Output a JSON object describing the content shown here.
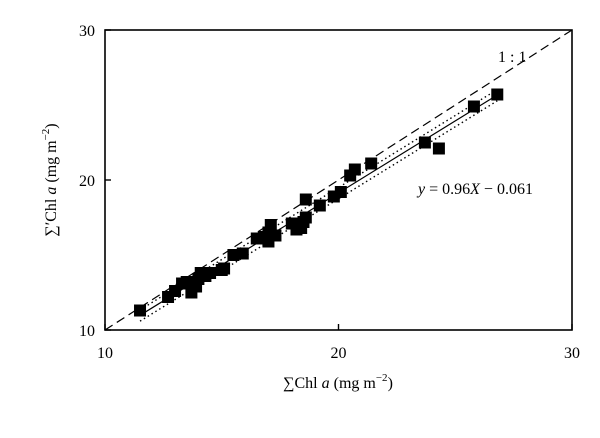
{
  "chart_data": {
    "type": "scatter",
    "title": "",
    "xlabel": "∑Chl a (mg m⁻²)",
    "xlabel_parts": [
      "∑Chl ",
      "a",
      " (mg m",
      "−2",
      ")"
    ],
    "ylabel": "∑′Chl a (mg m⁻²)",
    "ylabel_parts": [
      "∑′Chl ",
      "a",
      " (mg m",
      "−2",
      ")"
    ],
    "xlim": [
      10,
      30
    ],
    "ylim": [
      10,
      30
    ],
    "xticks": [
      "10",
      "20",
      "30"
    ],
    "yticks": [
      "10",
      "20",
      "30"
    ],
    "grid": false,
    "x": [
      11.5,
      12.7,
      13.0,
      13.3,
      13.5,
      13.7,
      13.8,
      13.9,
      14.0,
      14.1,
      14.3,
      14.5,
      15.0,
      15.1,
      15.5,
      15.9,
      16.5,
      16.8,
      17.0,
      17.0,
      17.1,
      17.3,
      18.0,
      18.2,
      18.4,
      18.5,
      18.6,
      18.6,
      19.2,
      19.8,
      20.1,
      20.5,
      20.7,
      21.4,
      23.7,
      24.3,
      25.8,
      26.8
    ],
    "y": [
      11.3,
      12.2,
      12.6,
      13.1,
      13.2,
      12.5,
      13.1,
      12.9,
      13.4,
      13.8,
      13.6,
      13.8,
      14.0,
      14.1,
      15.0,
      15.1,
      16.1,
      16.2,
      15.9,
      16.5,
      17.0,
      16.3,
      17.1,
      16.7,
      16.8,
      17.2,
      17.5,
      18.7,
      18.3,
      18.9,
      19.2,
      20.3,
      20.7,
      21.1,
      22.5,
      22.1,
      24.9,
      25.7
    ],
    "lines": [
      {
        "name": "1:1",
        "style": "dashed",
        "slope": 1.0,
        "intercept": 0
      },
      {
        "name": "fit",
        "style": "solid",
        "slope": 0.96,
        "intercept": -0.061,
        "range": [
          11.5,
          26.8
        ]
      },
      {
        "name": "conf-upper",
        "style": "dotted",
        "slope": 0.96,
        "intercept": 0.3,
        "range": [
          11.5,
          26.8
        ]
      },
      {
        "name": "conf-lower",
        "style": "dotted",
        "slope": 0.96,
        "intercept": -0.45,
        "range": [
          11.5,
          26.8
        ]
      }
    ],
    "annotations": {
      "one_to_one": "1 : 1",
      "equation_parts": [
        "y",
        " = 0.96",
        "X",
        " − 0.061"
      ]
    }
  }
}
